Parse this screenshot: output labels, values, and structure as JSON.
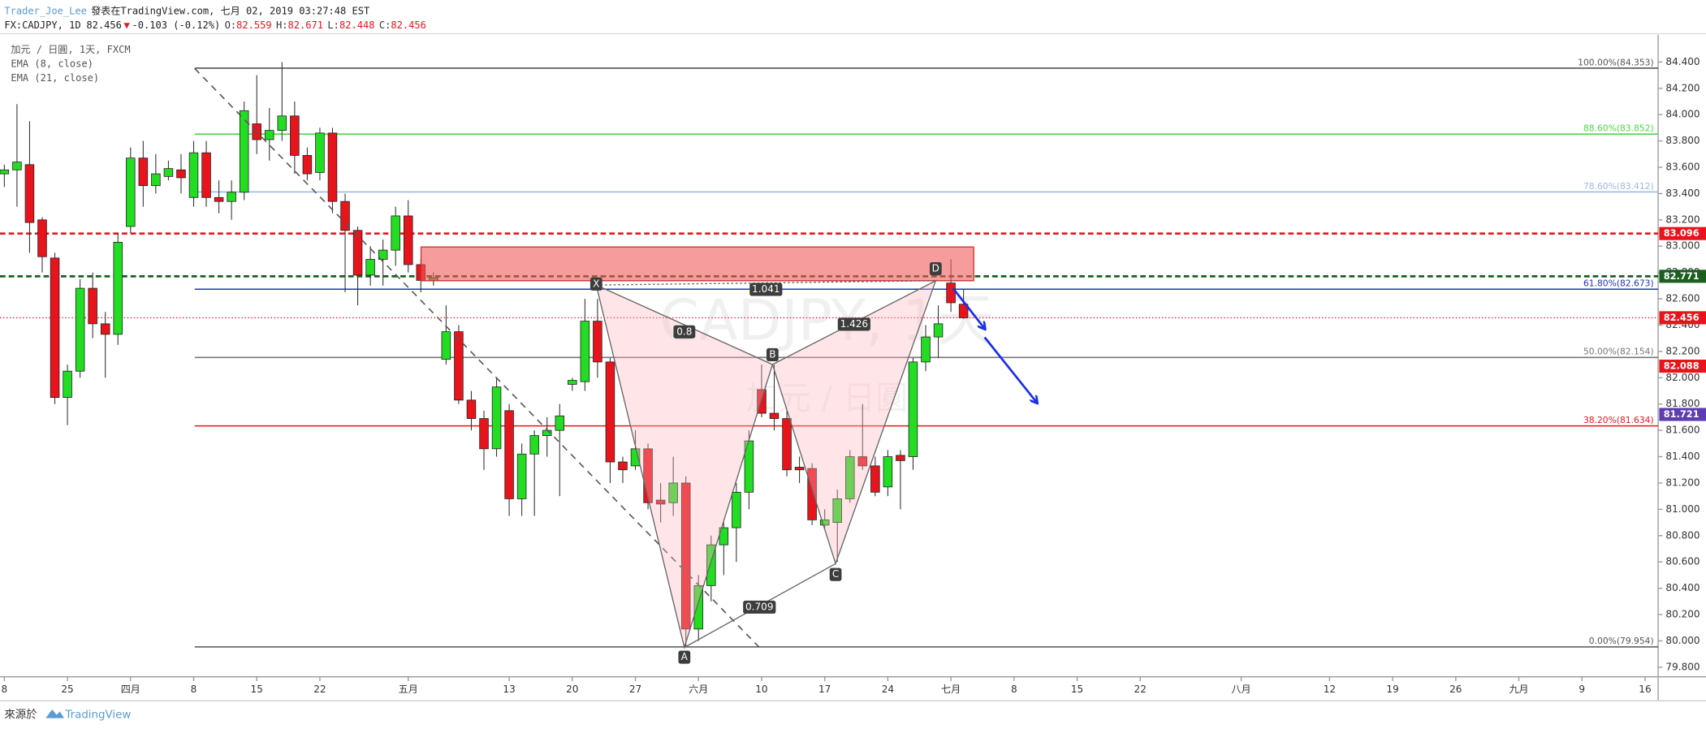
{
  "header": {
    "author": "Trader_Joe_Lee",
    "published": "發表在TradingView.com, 七月 02, 2019 03:27:48 EST",
    "symbol": "FX:CADJPY, 1D",
    "last": "82.456",
    "arrow": "▼",
    "change": "-0.103 (-0.12%)",
    "ohlc": [
      {
        "label": "O:",
        "value": "82.559"
      },
      {
        "label": "H:",
        "value": "82.671"
      },
      {
        "label": "L:",
        "value": "82.448"
      },
      {
        "label": "C:",
        "value": "82.456"
      }
    ]
  },
  "legend": [
    "加元 / 日圓, 1天, FXCM",
    "EMA (8, close)",
    "EMA (21, close)"
  ],
  "watermark": [
    "CADJPY, 1天",
    "加元 / 日圓"
  ],
  "footer": {
    "source": "來源於",
    "brand": "TradingView"
  },
  "chart_data": {
    "type": "candlestick",
    "up_color": "#22dd22",
    "down_color": "#e8141c",
    "grid": false,
    "categories": [
      "8",
      null,
      null,
      null,
      null,
      "25",
      null,
      null,
      null,
      null,
      "四月",
      null,
      null,
      null,
      null,
      "8",
      null,
      null,
      null,
      null,
      "15",
      null,
      null,
      null,
      null,
      "22",
      null,
      null,
      null,
      null,
      null,
      null,
      "五月",
      null,
      null,
      null,
      null,
      null,
      null,
      null,
      "13",
      null,
      null,
      null,
      null,
      "20",
      null,
      null,
      null,
      null,
      "27",
      null,
      null,
      null,
      null,
      "六月",
      null,
      null,
      null,
      null,
      "10",
      null,
      null,
      null,
      null,
      "17",
      null,
      null,
      null,
      null,
      "24",
      null,
      null,
      null,
      null,
      "七月",
      null,
      null,
      null,
      null,
      "8",
      null,
      null,
      null,
      null,
      "15",
      null,
      null,
      null,
      null,
      "22",
      null,
      null,
      null,
      null,
      null,
      null,
      null,
      "八月",
      null,
      null,
      null,
      null,
      null,
      null,
      "12",
      null,
      null,
      null,
      null,
      "19",
      null,
      null,
      null,
      null,
      "26",
      null,
      null,
      null,
      null,
      "九月",
      null,
      null,
      null,
      null,
      "9",
      null,
      null,
      null,
      null,
      "16"
    ],
    "open": [
      83.55,
      83.58,
      83.62,
      83.2,
      82.91,
      81.85,
      82.05,
      82.68,
      82.41,
      82.33,
      83.15,
      83.67,
      83.46,
      83.53,
      83.58,
      83.37,
      83.71,
      83.37,
      83.34,
      83.41,
      83.93,
      83.81,
      83.88,
      83.99,
      83.69,
      83.56,
      83.86,
      83.34,
      83.12,
      82.78,
      82.9,
      82.97,
      83.23,
      82.86,
      82.74,
      82.14,
      82.35,
      81.83,
      81.69,
      81.46,
      81.75,
      81.08,
      81.42,
      81.56,
      81.6,
      81.95,
      81.97,
      82.43,
      82.12,
      81.36,
      81.33,
      81.46,
      81.07,
      81.05,
      81.2,
      80.09,
      80.42,
      80.73,
      80.86,
      81.13,
      81.91,
      81.73,
      81.69,
      81.32,
      81.31,
      80.88,
      80.9,
      81.08,
      81.4,
      81.33,
      81.17,
      81.41,
      81.4,
      82.12,
      82.31,
      82.72,
      82.559,
      null,
      null,
      null,
      null,
      null,
      null,
      null,
      null,
      null,
      null,
      null,
      null,
      null,
      null,
      null,
      null,
      null,
      null,
      null,
      null,
      null,
      null,
      null,
      null,
      null,
      null,
      null,
      null,
      null,
      null,
      null,
      null,
      null,
      null,
      null,
      null,
      null,
      null,
      null,
      null,
      null,
      null,
      null,
      null,
      null,
      null,
      null,
      null,
      null,
      null,
      null,
      null,
      null,
      null
    ],
    "high": [
      83.62,
      84.08,
      83.95,
      83.22,
      82.95,
      82.1,
      82.75,
      82.8,
      82.5,
      83.1,
      83.75,
      83.8,
      83.7,
      83.65,
      83.7,
      83.8,
      83.8,
      83.5,
      83.5,
      84.1,
      84.3,
      84.05,
      84.4,
      84.1,
      83.75,
      83.9,
      83.9,
      83.4,
      83.15,
      83.0,
      83.05,
      83.3,
      83.35,
      82.9,
      82.8,
      82.55,
      82.4,
      81.9,
      81.75,
      82.0,
      81.8,
      81.5,
      81.6,
      81.7,
      81.8,
      82.0,
      82.6,
      82.6,
      82.15,
      81.4,
      81.6,
      81.5,
      81.2,
      81.4,
      81.25,
      80.5,
      80.8,
      80.9,
      81.2,
      81.6,
      82.1,
      82.1,
      81.75,
      81.4,
      81.35,
      81.0,
      81.15,
      81.45,
      81.8,
      81.4,
      81.45,
      81.45,
      82.15,
      82.4,
      82.55,
      82.9,
      82.671,
      null,
      null,
      null,
      null,
      null,
      null,
      null,
      null,
      null,
      null,
      null,
      null,
      null,
      null,
      null,
      null,
      null,
      null,
      null,
      null,
      null,
      null,
      null,
      null,
      null,
      null,
      null,
      null,
      null,
      null,
      null,
      null,
      null,
      null,
      null,
      null,
      null,
      null,
      null,
      null,
      null,
      null,
      null,
      null,
      null,
      null,
      null,
      null,
      null,
      null,
      null,
      null,
      null,
      null
    ],
    "low": [
      83.45,
      83.3,
      82.95,
      82.8,
      81.8,
      81.64,
      82.0,
      82.3,
      82.0,
      82.25,
      83.1,
      83.3,
      83.4,
      83.5,
      83.4,
      83.3,
      83.3,
      83.25,
      83.2,
      83.35,
      83.7,
      83.65,
      83.8,
      83.55,
      83.5,
      83.5,
      83.25,
      82.65,
      82.55,
      82.7,
      82.7,
      82.85,
      82.8,
      82.65,
      82.7,
      82.1,
      81.8,
      81.6,
      81.3,
      81.4,
      80.95,
      80.95,
      80.95,
      81.4,
      81.1,
      81.9,
      81.9,
      82.0,
      81.2,
      81.2,
      81.3,
      81.0,
      80.9,
      80.95,
      79.954,
      80.0,
      80.3,
      80.5,
      80.6,
      81.0,
      81.7,
      81.6,
      81.25,
      81.2,
      80.88,
      80.85,
      80.6,
      81.05,
      81.3,
      81.1,
      81.1,
      81.0,
      81.3,
      82.05,
      82.15,
      82.5,
      82.448,
      null,
      null,
      null,
      null,
      null,
      null,
      null,
      null,
      null,
      null,
      null,
      null,
      null,
      null,
      null,
      null,
      null,
      null,
      null,
      null,
      null,
      null,
      null,
      null,
      null,
      null,
      null,
      null,
      null,
      null,
      null,
      null,
      null,
      null,
      null,
      null,
      null,
      null,
      null,
      null,
      null,
      null,
      null,
      null,
      null,
      null,
      null,
      null,
      null,
      null,
      null,
      null,
      null,
      null
    ],
    "close": [
      83.58,
      83.64,
      83.18,
      82.92,
      81.85,
      82.05,
      82.68,
      82.41,
      82.33,
      83.03,
      83.67,
      83.46,
      83.55,
      83.59,
      83.52,
      83.71,
      83.37,
      83.34,
      83.41,
      84.03,
      83.81,
      83.88,
      83.99,
      83.69,
      83.55,
      83.86,
      83.34,
      83.12,
      82.78,
      82.9,
      82.97,
      83.23,
      82.86,
      82.74,
      82.76,
      82.35,
      81.83,
      81.69,
      81.46,
      81.93,
      81.08,
      81.42,
      81.56,
      81.6,
      81.71,
      81.98,
      82.43,
      82.12,
      81.36,
      81.3,
      81.46,
      81.05,
      81.04,
      81.2,
      80.09,
      80.42,
      80.73,
      80.86,
      81.13,
      81.52,
      81.73,
      81.69,
      81.3,
      81.3,
      80.92,
      80.92,
      81.08,
      81.4,
      81.33,
      81.13,
      81.4,
      81.37,
      82.12,
      82.31,
      82.41,
      82.57,
      82.456,
      null,
      null,
      null,
      null,
      null,
      null,
      null,
      null,
      null,
      null,
      null,
      null,
      null,
      null,
      null,
      null,
      null,
      null,
      null,
      null,
      null,
      null,
      null,
      null,
      null,
      null,
      null,
      null,
      null,
      null,
      null,
      null,
      null,
      null,
      null,
      null,
      null,
      null,
      null,
      null,
      null,
      null,
      null,
      null,
      null,
      null,
      null,
      null,
      null,
      null,
      null,
      null,
      null,
      null
    ],
    "ylim": [
      79.727,
      84.557
    ],
    "yticks": [
      {
        "value": 79.8,
        "label": "79.800"
      },
      {
        "value": 80.0,
        "label": "80.000"
      },
      {
        "value": 80.2,
        "label": "80.200"
      },
      {
        "value": 80.4,
        "label": "80.400"
      },
      {
        "value": 80.6,
        "label": "80.600"
      },
      {
        "value": 80.8,
        "label": "80.800"
      },
      {
        "value": 81.0,
        "label": "81.000"
      },
      {
        "value": 81.2,
        "label": "81.200"
      },
      {
        "value": 81.4,
        "label": "81.400"
      },
      {
        "value": 81.6,
        "label": "81.600"
      },
      {
        "value": 81.8,
        "label": "81.800"
      },
      {
        "value": 82.0,
        "label": "82.000"
      },
      {
        "value": 82.2,
        "label": "82.200"
      },
      {
        "value": 82.4,
        "label": "82.400"
      },
      {
        "value": 82.6,
        "label": "82.600"
      },
      {
        "value": 82.8,
        "label": "82.800"
      },
      {
        "value": 83.0,
        "label": "83.000"
      },
      {
        "value": 83.2,
        "label": "83.200"
      },
      {
        "value": 83.4,
        "label": "83.400"
      },
      {
        "value": 83.6,
        "label": "83.600"
      },
      {
        "value": 83.8,
        "label": "83.800"
      },
      {
        "value": 84.0,
        "label": "84.000"
      },
      {
        "value": 84.2,
        "label": "84.200"
      },
      {
        "value": 84.4,
        "label": "84.400"
      }
    ],
    "fib_levels": [
      {
        "label": "100.00%(84.353)",
        "value": 84.353,
        "color": "#555555"
      },
      {
        "label": "88.60%(83.852)",
        "value": 83.852,
        "color": "#4cd54c"
      },
      {
        "label": "78.60%(83.412)",
        "value": 83.412,
        "color": "#9db7e8"
      },
      {
        "label": "61.80%(82.673)",
        "value": 82.673,
        "color": "#2233bb"
      },
      {
        "label": "50.00%(82.154)",
        "value": 82.154,
        "color": "#777777"
      },
      {
        "label": "38.20%(81.634)",
        "value": 81.634,
        "color": "#e8141c"
      },
      {
        "label": "0.00%(79.954)",
        "value": 79.954,
        "color": "#555555"
      }
    ],
    "price_lines": [
      {
        "label": "83.096",
        "value": 83.096,
        "color": "#e8141c",
        "style": "dashed"
      },
      {
        "label": "82.771",
        "value": 82.771,
        "color": "#1b5e20",
        "style": "dashed"
      },
      {
        "label": "82.456",
        "value": 82.456,
        "color": "#e8141c",
        "style": "dotted"
      }
    ],
    "ema_labels": [
      {
        "label": "82.088",
        "value": 82.088,
        "color": "#e8141c"
      },
      {
        "label": "81.721",
        "value": 81.721,
        "color": "#5e3db3"
      }
    ],
    "pattern": {
      "points": [
        "X",
        "A",
        "B",
        "C",
        "D"
      ],
      "ratios": [
        "0.8",
        "0.709",
        "1.426",
        "1.041"
      ]
    }
  }
}
